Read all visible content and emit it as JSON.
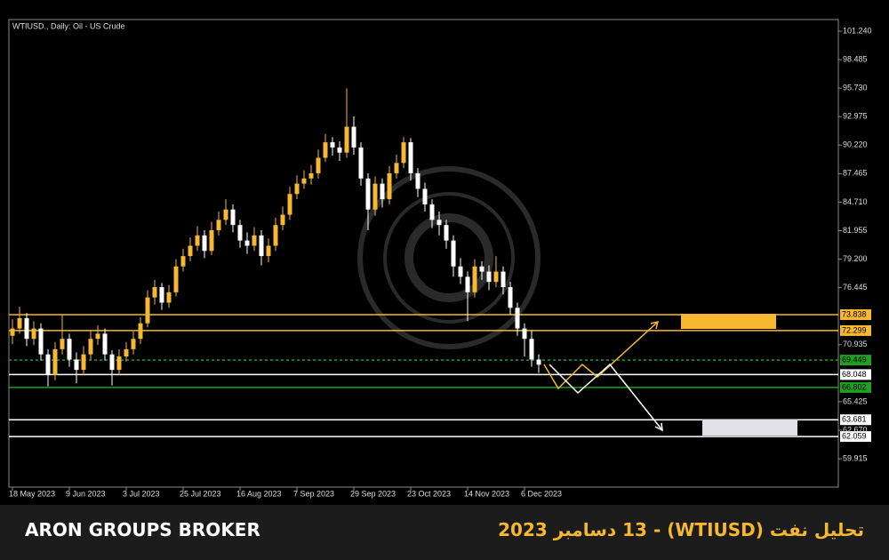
{
  "chart_data": {
    "type": "candlestick",
    "title": "WTIUSD., Daily:  Oil - US Crude",
    "categories": [
      "18 May 2023",
      null,
      null,
      null,
      null,
      null,
      null,
      null,
      "9 Jun 2023",
      null,
      null,
      null,
      null,
      null,
      null,
      null,
      "3 Jul 2023",
      null,
      null,
      null,
      null,
      null,
      null,
      null,
      "25 Jul 2023",
      null,
      null,
      null,
      null,
      null,
      null,
      null,
      "16 Aug 2023",
      null,
      null,
      null,
      null,
      null,
      null,
      null,
      "7 Sep 2023",
      null,
      null,
      null,
      null,
      null,
      null,
      null,
      "29 Sep 2023",
      null,
      null,
      null,
      null,
      null,
      null,
      null,
      "23 Oct 2023",
      null,
      null,
      null,
      null,
      null,
      null,
      null,
      "14 Nov 2023",
      null,
      null,
      null,
      null,
      null,
      null,
      null,
      "6 Dec 2023",
      null,
      null
    ],
    "open": [
      71.8,
      72.5,
      73.5,
      71.5,
      72.5,
      70.0,
      68.0,
      70.5,
      71.5,
      69.5,
      68.5,
      70.0,
      71.5,
      72.0,
      70.0,
      68.5,
      69.8,
      70.5,
      71.5,
      73.0,
      75.5,
      76.5,
      75.0,
      76.0,
      78.5,
      79.5,
      80.5,
      81.5,
      80.0,
      82.0,
      83.0,
      84.0,
      82.5,
      81.0,
      80.5,
      81.5,
      79.5,
      80.5,
      82.5,
      83.5,
      85.5,
      86.5,
      87.0,
      87.5,
      89.0,
      90.5,
      90.0,
      89.5,
      92.0,
      90.0,
      87.0,
      84.0,
      86.5,
      85.0,
      87.5,
      88.5,
      90.5,
      87.5,
      86.0,
      84.5,
      83.0,
      82.5,
      81.0,
      78.5,
      77.5,
      76.0,
      78.5,
      78.0,
      77.0,
      78.0,
      76.5,
      74.5,
      72.5,
      71.5,
      69.5
    ],
    "high": [
      73.4,
      74.6,
      74.0,
      73.2,
      73.0,
      70.5,
      71.2,
      73.8,
      72.0,
      70.2,
      70.8,
      72.3,
      72.8,
      72.5,
      70.4,
      70.5,
      71.2,
      72.2,
      73.6,
      76.2,
      77.2,
      76.9,
      76.7,
      79.2,
      80.2,
      81.3,
      82.4,
      82.0,
      82.8,
      83.8,
      85.0,
      84.5,
      83.0,
      81.8,
      82.3,
      82.0,
      81.2,
      83.2,
      84.3,
      86.2,
      87.3,
      87.8,
      88.3,
      89.8,
      91.3,
      91.0,
      90.6,
      95.7,
      93.0,
      90.5,
      87.5,
      87.2,
      87.0,
      88.2,
      89.3,
      91.0,
      90.9,
      88.0,
      86.6,
      85.0,
      83.8,
      83.0,
      81.5,
      79.3,
      78.0,
      79.2,
      79.0,
      78.6,
      79.5,
      78.5,
      77.0,
      75.0,
      73.0,
      72.3,
      70.0
    ],
    "low": [
      71.0,
      72.0,
      70.8,
      70.9,
      69.4,
      66.9,
      67.5,
      70.0,
      68.8,
      67.2,
      68.0,
      69.5,
      70.9,
      69.4,
      67.0,
      68.0,
      69.3,
      70.0,
      71.0,
      72.6,
      74.8,
      74.3,
      74.5,
      75.6,
      78.0,
      79.0,
      80.0,
      79.3,
      79.6,
      81.5,
      82.5,
      81.8,
      80.3,
      79.7,
      80.0,
      78.6,
      78.9,
      80.0,
      82.0,
      83.0,
      85.0,
      86.0,
      86.4,
      87.0,
      88.6,
      89.2,
      88.7,
      89.0,
      89.3,
      86.3,
      82.0,
      83.4,
      84.2,
      84.5,
      87.0,
      88.0,
      86.8,
      85.2,
      83.8,
      82.2,
      81.5,
      80.2,
      77.5,
      76.8,
      73.2,
      75.5,
      77.2,
      76.2,
      76.5,
      75.8,
      73.8,
      71.8,
      69.8,
      68.8,
      68.2
    ],
    "close": [
      72.5,
      73.5,
      71.5,
      72.5,
      70.0,
      68.0,
      70.5,
      71.5,
      69.5,
      68.5,
      70.0,
      71.5,
      72.0,
      70.0,
      68.5,
      69.8,
      70.5,
      71.5,
      73.0,
      75.5,
      76.5,
      75.0,
      76.0,
      78.5,
      79.5,
      80.5,
      81.5,
      80.0,
      82.0,
      83.0,
      84.0,
      82.5,
      81.0,
      80.5,
      81.5,
      79.5,
      80.5,
      82.5,
      83.5,
      85.5,
      86.5,
      87.0,
      87.5,
      89.0,
      90.5,
      90.0,
      89.5,
      92.0,
      90.0,
      87.0,
      84.0,
      86.5,
      85.0,
      87.5,
      88.5,
      90.5,
      87.5,
      86.0,
      84.5,
      83.0,
      82.5,
      81.0,
      78.5,
      77.5,
      76.0,
      78.5,
      78.0,
      77.0,
      78.0,
      76.5,
      74.5,
      72.5,
      71.5,
      69.5,
      69.0
    ],
    "up_color": "#f5b82e",
    "down_color": "#ffffff",
    "ylim": [
      57.17,
      102.36
    ],
    "yticks": [
      {
        "value": 101.24,
        "label": "101.240"
      },
      {
        "value": 98.485,
        "label": "98.485"
      },
      {
        "value": 95.73,
        "label": "95.730"
      },
      {
        "value": 92.975,
        "label": "92.975"
      },
      {
        "value": 90.22,
        "label": "90.220"
      },
      {
        "value": 87.465,
        "label": "87.465"
      },
      {
        "value": 84.71,
        "label": "84.710"
      },
      {
        "value": 81.955,
        "label": "81.955"
      },
      {
        "value": 79.2,
        "label": "79.200"
      },
      {
        "value": 76.445,
        "label": "76.445"
      },
      {
        "value": 70.935,
        "label": "70.935"
      },
      {
        "value": 65.425,
        "label": "65.425"
      },
      {
        "value": 62.67,
        "label": "62.670"
      },
      {
        "value": 59.915,
        "label": "59.915"
      }
    ],
    "levels": [
      {
        "value": 73.838,
        "color": "#f5b82e",
        "style": "solid"
      },
      {
        "value": 72.299,
        "color": "#f5b82e",
        "style": "solid"
      },
      {
        "value": 69.449,
        "color": "#1fa01f",
        "style": "dashed"
      },
      {
        "value": 68.048,
        "color": "#ffffff",
        "style": "solid"
      },
      {
        "value": 66.802,
        "color": "#1fa01f",
        "style": "solid"
      },
      {
        "value": 63.681,
        "color": "#ffffff",
        "style": "solid"
      },
      {
        "value": 62.059,
        "color": "#ffffff",
        "style": "solid"
      }
    ]
  },
  "footer": {
    "brand": "ARON GROUPS BROKER",
    "headline": "تحلیل نفت  (WTIUSD) - 13 دسامبر 2023"
  }
}
